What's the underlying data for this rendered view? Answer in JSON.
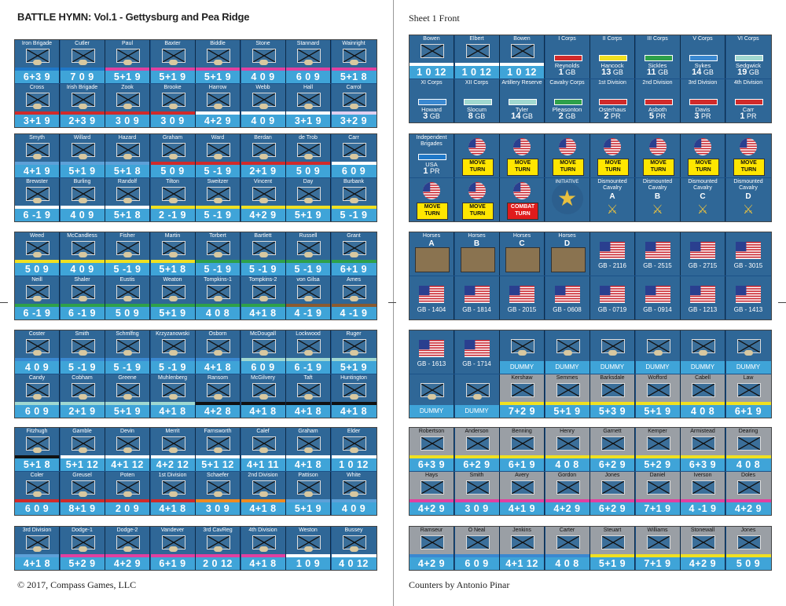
{
  "header": {
    "title": "BATTLE HYMN: Vol.1 - Gettysburg and Pea Ridge",
    "sheet": "Sheet 1 Front"
  },
  "footer": {
    "copyright": "© 2017, Compass Games, LLC",
    "credit": "Counters by Antonio Pinar"
  },
  "colors": {
    "panel": "#1c5288",
    "counter": "#2f6797",
    "value_bar": "#3fa4d8",
    "move_turn": "#ffe600",
    "combat_turn": "#e01b1b",
    "confed_gray": "#9a9fa5"
  },
  "left_rows": [
    [
      {
        "n": "Iron Brigade",
        "v": "6+3 9",
        "b": "#1f78c8"
      },
      {
        "n": "Cutler",
        "v": "7 0 9",
        "b": "#1f78c8"
      },
      {
        "n": "Paul",
        "v": "5+1 9",
        "b": "#e040a0"
      },
      {
        "n": "Baxter",
        "v": "5+1 9",
        "b": "#e040a0"
      },
      {
        "n": "Biddle",
        "v": "5+1 9",
        "b": "#e040a0"
      },
      {
        "n": "Stone",
        "v": "4 0 9",
        "b": "#e040a0"
      },
      {
        "n": "Stannard",
        "v": "6 0 9",
        "b": "#e040a0"
      },
      {
        "n": "Wainright",
        "v": "5+1 8",
        "b": "#e040a0"
      }
    ],
    [
      {
        "n": "Cross",
        "v": "3+1 9",
        "b": "#d02a2a"
      },
      {
        "n": "Irish Brigade",
        "v": "2+3 9",
        "b": "#d02a2a"
      },
      {
        "n": "Zook",
        "v": "3 0 9",
        "b": "#d02a2a"
      },
      {
        "n": "Brooke",
        "v": "3 0 9",
        "b": "#d02a2a"
      },
      {
        "n": "Harrow",
        "v": "4+2 9",
        "b": "#ffffff"
      },
      {
        "n": "Webb",
        "v": "4 0 9",
        "b": "#ffffff"
      },
      {
        "n": "Hall",
        "v": "3+1 9",
        "b": "#ffffff"
      },
      {
        "n": "Carrol",
        "v": "3+2 9",
        "b": "#e0d0f0"
      }
    ],
    [
      {
        "n": "Smyth",
        "v": "4+1 9",
        "b": "#5da0d8"
      },
      {
        "n": "Willard",
        "v": "5+1 9",
        "b": "#5da0d8"
      },
      {
        "n": "Hazard",
        "v": "5+1 8",
        "b": "#5da0d8"
      },
      {
        "n": "Graham",
        "v": "5 0 9",
        "b": "#d02a2a"
      },
      {
        "n": "Ward",
        "v": "5 -1 9",
        "b": "#d02a2a"
      },
      {
        "n": "Berdan",
        "v": "2+1 9",
        "b": "#d02a2a"
      },
      {
        "n": "de Trob",
        "v": "5 0 9",
        "b": "#d02a2a"
      },
      {
        "n": "Carr",
        "v": "6 0 9",
        "b": "#ffffff"
      }
    ],
    [
      {
        "n": "Brewster",
        "v": "6 -1 9",
        "b": "#ffffff"
      },
      {
        "n": "Burling",
        "v": "4 0 9",
        "b": "#ffffff"
      },
      {
        "n": "Randolf",
        "v": "5+1 8",
        "b": "#ffffff"
      },
      {
        "n": "Tilton",
        "v": "2 -1 9",
        "b": "#f0e020"
      },
      {
        "n": "Sweitzer",
        "v": "5 -1 9",
        "b": "#f0e020"
      },
      {
        "n": "Vincent",
        "v": "4+2 9",
        "b": "#f0e020"
      },
      {
        "n": "Day",
        "v": "5+1 9",
        "b": "#f0e020"
      },
      {
        "n": "Burbank",
        "v": "5 -1 9",
        "b": "#f0e020"
      }
    ],
    [
      {
        "n": "Weed",
        "v": "5 0 9",
        "b": "#f0e020"
      },
      {
        "n": "McCandless",
        "v": "4 0 9",
        "b": "#f0e020"
      },
      {
        "n": "Fisher",
        "v": "5 -1 9",
        "b": "#f0e020"
      },
      {
        "n": "Martin",
        "v": "5+1 8",
        "b": "#f0e020"
      },
      {
        "n": "Torbert",
        "v": "5 -1 9",
        "b": "#2ea04a"
      },
      {
        "n": "Bartlett",
        "v": "5 -1 9",
        "b": "#2ea04a"
      },
      {
        "n": "Russell",
        "v": "5 -1 9",
        "b": "#2ea04a"
      },
      {
        "n": "Grant",
        "v": "6+1 9",
        "b": "#2ea04a"
      }
    ],
    [
      {
        "n": "Neill",
        "v": "6 -1 9",
        "b": "#2ea04a"
      },
      {
        "n": "Shaler",
        "v": "6 -1 9",
        "b": "#2ea04a"
      },
      {
        "n": "Eustis",
        "v": "5 0 9",
        "b": "#2ea04a"
      },
      {
        "n": "Weaton",
        "v": "5+1 9",
        "b": "#2ea04a"
      },
      {
        "n": "Tompkins-1",
        "v": "4 0 8",
        "b": "#2ea04a"
      },
      {
        "n": "Tompkins-2",
        "v": "4+1 8",
        "b": "#2ea04a"
      },
      {
        "n": "von Gilsa",
        "v": "4 -1 9",
        "b": "#8a5a30"
      },
      {
        "n": "Ames",
        "v": "4 -1 9",
        "b": "#8a5a30"
      }
    ],
    [
      {
        "n": "Coster",
        "v": "4 0 9",
        "b": "#3a88d0"
      },
      {
        "n": "Smith",
        "v": "5 -1 9",
        "b": "#3a88d0"
      },
      {
        "n": "Schmlfng",
        "v": "5 -1 9",
        "b": "#3a88d0"
      },
      {
        "n": "Krzyzanowski",
        "v": "5 -1 9",
        "b": "#3a88d0"
      },
      {
        "n": "Osborn",
        "v": "4+1 8",
        "b": "#3a88d0"
      },
      {
        "n": "McDougall",
        "v": "6 0 9",
        "b": "#a0d8d0"
      },
      {
        "n": "Lockwood",
        "v": "6 -1 9",
        "b": "#a0d8d0"
      },
      {
        "n": "Ruger",
        "v": "5+1 9",
        "b": "#a0d8d0"
      }
    ],
    [
      {
        "n": "Candy",
        "v": "6 0 9",
        "b": "#a0d8d0"
      },
      {
        "n": "Cobham",
        "v": "2+1 9",
        "b": "#a0d8d0"
      },
      {
        "n": "Greene",
        "v": "5+1 9",
        "b": "#a0d8d0"
      },
      {
        "n": "Muhlenberg",
        "v": "4+1 8",
        "b": "#a0d8d0"
      },
      {
        "n": "Ransom",
        "v": "4+2 8",
        "b": "#111111"
      },
      {
        "n": "McGilvery",
        "v": "4+1 8",
        "b": "#111111"
      },
      {
        "n": "Taft",
        "v": "4+1 8",
        "b": "#111111"
      },
      {
        "n": "Huntington",
        "v": "4+1 8",
        "b": "#111111"
      }
    ],
    [
      {
        "n": "Fitzhugh",
        "v": "5+1 8",
        "b": "#111111"
      },
      {
        "n": "Gamble",
        "v": "5+1 12",
        "b": "#ffffff"
      },
      {
        "n": "Devin",
        "v": "4+1 12",
        "b": "#ffffff"
      },
      {
        "n": "Merrit",
        "v": "4+2 12",
        "b": "#ffffff"
      },
      {
        "n": "Farnsworth",
        "v": "5+1 12",
        "b": "#ffffff"
      },
      {
        "n": "Calef",
        "v": "4+1 11",
        "b": "#ffffff"
      },
      {
        "n": "Graham",
        "v": "4+1 8",
        "b": "#ffffff"
      },
      {
        "n": "Elder",
        "v": "1 0 12",
        "b": "#ffffff"
      }
    ],
    [
      {
        "n": "Coler",
        "v": "6 0 9",
        "b": "#d02a2a"
      },
      {
        "n": "Greusel",
        "v": "8+1 9",
        "b": "#d02a2a"
      },
      {
        "n": "Poten",
        "v": "2 0 9",
        "b": "#d02a2a"
      },
      {
        "n": "1st Division",
        "v": "4+1 8",
        "b": "#d02a2a"
      },
      {
        "n": "Schaefer",
        "v": "3 0 9",
        "b": "#f08a20"
      },
      {
        "n": "2nd Division",
        "v": "4+1 8",
        "b": "#f08a20"
      },
      {
        "n": "Pattison",
        "v": "5+1 9",
        "b": "#5da0d8"
      },
      {
        "n": "White",
        "v": "4 0 9",
        "b": "#5da0d8"
      }
    ],
    [
      {
        "n": "3rd Division",
        "v": "4+1 8",
        "b": "#5da0d8"
      },
      {
        "n": "Dodge-1",
        "v": "5+2 9",
        "b": "#e040a0"
      },
      {
        "n": "Dodge-2",
        "v": "4+2 9",
        "b": "#e040a0"
      },
      {
        "n": "Vandever",
        "v": "6+1 9",
        "b": "#e040a0"
      },
      {
        "n": "3rd CavReg",
        "v": "2 0 12",
        "b": "#e040a0"
      },
      {
        "n": "4th Division",
        "v": "4+1 8",
        "b": "#e040a0"
      },
      {
        "n": "Weston",
        "v": "1 0 9",
        "b": "#ffffff"
      },
      {
        "n": "Bussey",
        "v": "4 0 12",
        "b": "#ffffff"
      }
    ]
  ],
  "right": {
    "row1": [
      {
        "n": "Bowen",
        "v": "1 0 12"
      },
      {
        "n": "Elbert",
        "v": "1 0 12"
      },
      {
        "n": "Bowen",
        "v": "1 0 12"
      },
      {
        "n": "I Corps",
        "s": "Reynolds",
        "x": "1",
        "u": "GB"
      },
      {
        "n": "II Corps",
        "s": "Hancock",
        "x": "13",
        "u": "GB"
      },
      {
        "n": "III Corps",
        "s": "Sickles",
        "x": "11",
        "u": "GB"
      },
      {
        "n": "V Corps",
        "s": "Sykes",
        "x": "14",
        "u": "GB"
      },
      {
        "n": "VI Corps",
        "s": "Sedgwick",
        "x": "19",
        "u": "GB"
      }
    ],
    "row2": [
      {
        "n": "XI Corps",
        "s": "Howard",
        "x": "3",
        "u": "GB"
      },
      {
        "n": "XII Corps",
        "s": "Slocum",
        "x": "8",
        "u": "GB"
      },
      {
        "n": "Artillery Reserve",
        "s": "Tyler",
        "x": "14",
        "u": "GB"
      },
      {
        "n": "Cavalry Corps",
        "s": "Pleasonton",
        "x": "2",
        "u": "GB"
      },
      {
        "n": "1st Division",
        "s": "Osterhaus",
        "x": "2",
        "u": "PR"
      },
      {
        "n": "2nd Division",
        "s": "Asboth",
        "x": "5",
        "u": "PR"
      },
      {
        "n": "3rd Division",
        "s": "Davis",
        "x": "3",
        "u": "PR"
      },
      {
        "n": "4th Division",
        "s": "Carr",
        "x": "1",
        "u": "PR"
      }
    ],
    "row3": [
      {
        "n": "Independent Brigades",
        "s": "USA",
        "x": "1",
        "u": "PR"
      },
      {
        "n": "MOVE TURN"
      },
      {
        "n": "MOVE TURN"
      },
      {
        "n": "MOVE TURN"
      },
      {
        "n": "MOVE TURN"
      },
      {
        "n": "MOVE TURN"
      },
      {
        "n": "MOVE TURN"
      },
      {
        "n": "MOVE TURN"
      }
    ],
    "row4": [
      {
        "n": "MOVE TURN"
      },
      {
        "n": "MOVE TURN"
      },
      {
        "n": "COMBAT TURN"
      },
      {
        "n": "INITIATIVE"
      },
      {
        "n": "Dismounted Cavalry",
        "s": "A"
      },
      {
        "n": "Dismounted Cavalry",
        "s": "B"
      },
      {
        "n": "Dismounted Cavalry",
        "s": "C"
      },
      {
        "n": "Dismounted Cavalry",
        "s": "D"
      }
    ],
    "row5": [
      {
        "n": "Horses",
        "s": "A"
      },
      {
        "n": "Horses",
        "s": "B"
      },
      {
        "n": "Horses",
        "s": "C"
      },
      {
        "n": "Horses",
        "s": "D"
      },
      {
        "n": "GB - 2116"
      },
      {
        "n": "GB - 2515"
      },
      {
        "n": "GB - 2715"
      },
      {
        "n": "GB - 3015"
      }
    ],
    "row6": [
      {
        "n": "GB - 1404"
      },
      {
        "n": "GB - 1814"
      },
      {
        "n": "GB - 2015"
      },
      {
        "n": "GB - 0608"
      },
      {
        "n": "GB - 0719"
      },
      {
        "n": "GB - 0914"
      },
      {
        "n": "GB - 1213"
      },
      {
        "n": "GB - 1413"
      }
    ],
    "row7": [
      {
        "n": "GB - 1613"
      },
      {
        "n": "GB - 1714"
      },
      {
        "n": "DUMMY"
      },
      {
        "n": "DUMMY"
      },
      {
        "n": "DUMMY"
      },
      {
        "n": "DUMMY"
      },
      {
        "n": "DUMMY"
      },
      {
        "n": "DUMMY"
      }
    ],
    "row8": [
      {
        "n": "DUMMY"
      },
      {
        "n": "DUMMY"
      },
      {
        "n": "Kershaw",
        "v": "7+2 9"
      },
      {
        "n": "Semmes",
        "v": "5+1 9"
      },
      {
        "n": "Barksdale",
        "v": "5+3 9"
      },
      {
        "n": "Wofford",
        "v": "5+1 9"
      },
      {
        "n": "Cabell",
        "v": "4 0 8"
      },
      {
        "n": "Law",
        "v": "6+1 9"
      }
    ],
    "row9": [
      {
        "n": "Robertson",
        "v": "6+3 9"
      },
      {
        "n": "Anderson",
        "v": "6+2 9"
      },
      {
        "n": "Benning",
        "v": "6+1 9"
      },
      {
        "n": "Henry",
        "v": "4 0 8"
      },
      {
        "n": "Garnett",
        "v": "6+2 9"
      },
      {
        "n": "Kemper",
        "v": "5+2 9"
      },
      {
        "n": "Armistead",
        "v": "6+3 9"
      },
      {
        "n": "Dearing",
        "v": "4 0 8"
      }
    ],
    "row10": [
      {
        "n": "Hays",
        "v": "4+2 9"
      },
      {
        "n": "Smith",
        "v": "3 0 9"
      },
      {
        "n": "Avery",
        "v": "4+1 9"
      },
      {
        "n": "Gordon",
        "v": "4+2 9"
      },
      {
        "n": "Jones",
        "v": "6+2 9"
      },
      {
        "n": "Daniel",
        "v": "7+1 9"
      },
      {
        "n": "Iverson",
        "v": "4 -1 9"
      },
      {
        "n": "Doles",
        "v": "4+2 9"
      }
    ],
    "row11": [
      {
        "n": "Ramseur",
        "v": "4+2 9"
      },
      {
        "n": "O Neal",
        "v": "6 0 9"
      },
      {
        "n": "Jenkins",
        "v": "4+1 12"
      },
      {
        "n": "Carter",
        "v": "4 0 8"
      },
      {
        "n": "Steuart",
        "v": "5+1 9"
      },
      {
        "n": "Williams",
        "v": "7+1 9"
      },
      {
        "n": "Stonewall",
        "v": "4+2 9"
      },
      {
        "n": "Jones",
        "v": "5 0 9"
      }
    ]
  }
}
